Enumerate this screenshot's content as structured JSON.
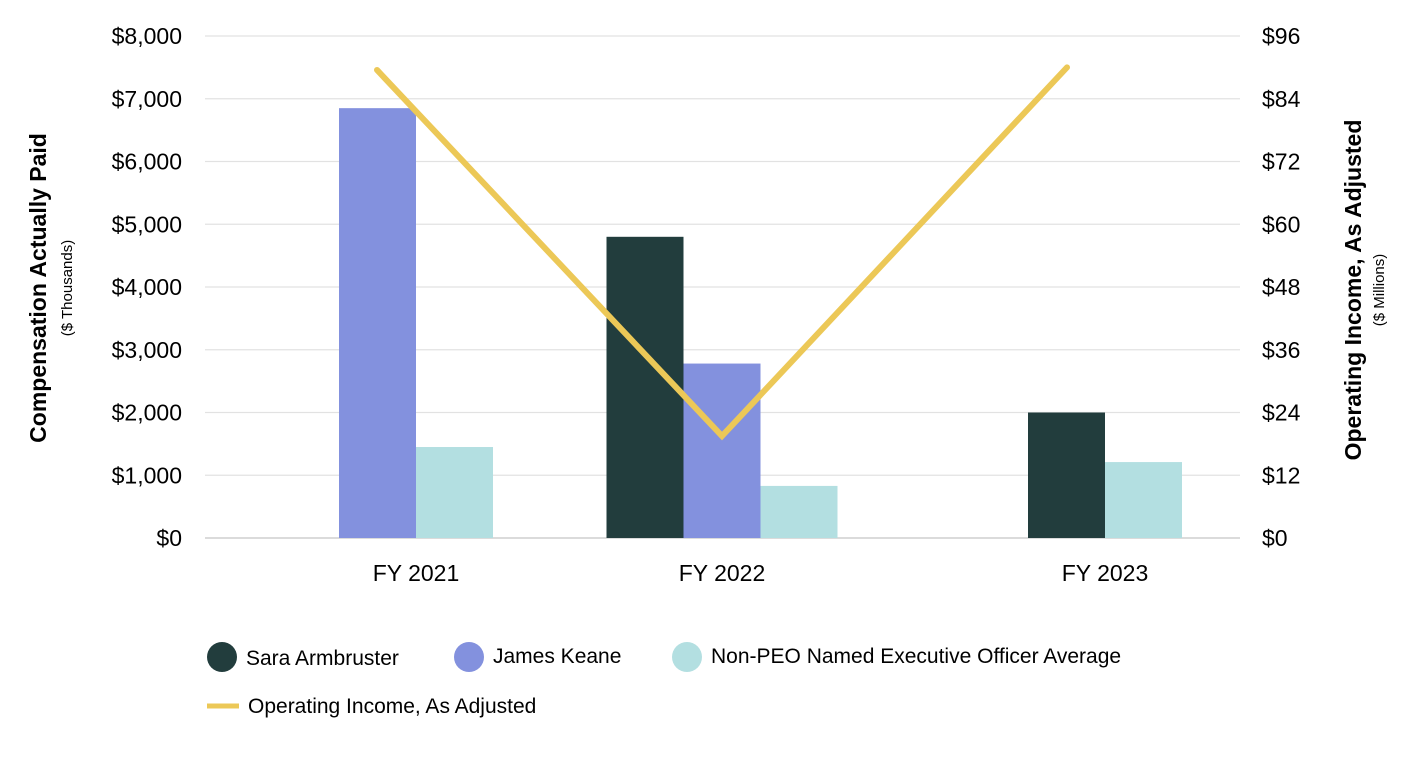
{
  "chart_data": {
    "type": "bar",
    "categories": [
      "FY 2021",
      "FY 2022",
      "FY 2023"
    ],
    "series": [
      {
        "name": "Sara Armbruster",
        "kind": "bar",
        "axis": "left",
        "color": "#223d3d",
        "values": [
          null,
          4800,
          2000
        ]
      },
      {
        "name": "James Keane",
        "kind": "bar",
        "axis": "left",
        "color": "#8391de",
        "values": [
          6850,
          2780,
          null
        ]
      },
      {
        "name": "Non-PEO Named Executive Officer Average",
        "kind": "bar",
        "axis": "left",
        "color": "#b3dfe1",
        "values": [
          1450,
          830,
          1210
        ]
      },
      {
        "name": "Operating Income, As Adjusted",
        "kind": "line",
        "axis": "right",
        "color": "#ecc857",
        "values": [
          89.5,
          19.5,
          90
        ]
      }
    ],
    "y_left": {
      "title": "Compensation Actually Paid",
      "subtitle": "($ Thousands)",
      "ylim": [
        0,
        8000
      ],
      "ticks": [
        "$0",
        "$1,000",
        "$2,000",
        "$3,000",
        "$4,000",
        "$5,000",
        "$6,000",
        "$7,000",
        "$8,000"
      ],
      "tick_values": [
        0,
        1000,
        2000,
        3000,
        4000,
        5000,
        6000,
        7000,
        8000
      ]
    },
    "y_right": {
      "title": "Operating Income, As Adjusted",
      "subtitle": "($ Millions)",
      "ylim": [
        0,
        96
      ],
      "ticks": [
        "$0",
        "$12",
        "$24",
        "$36",
        "$48",
        "$60",
        "$72",
        "$84",
        "$96"
      ],
      "tick_values": [
        0,
        12,
        24,
        36,
        48,
        60,
        72,
        84,
        96
      ]
    },
    "grid": true,
    "legend_position": "bottom-left"
  }
}
